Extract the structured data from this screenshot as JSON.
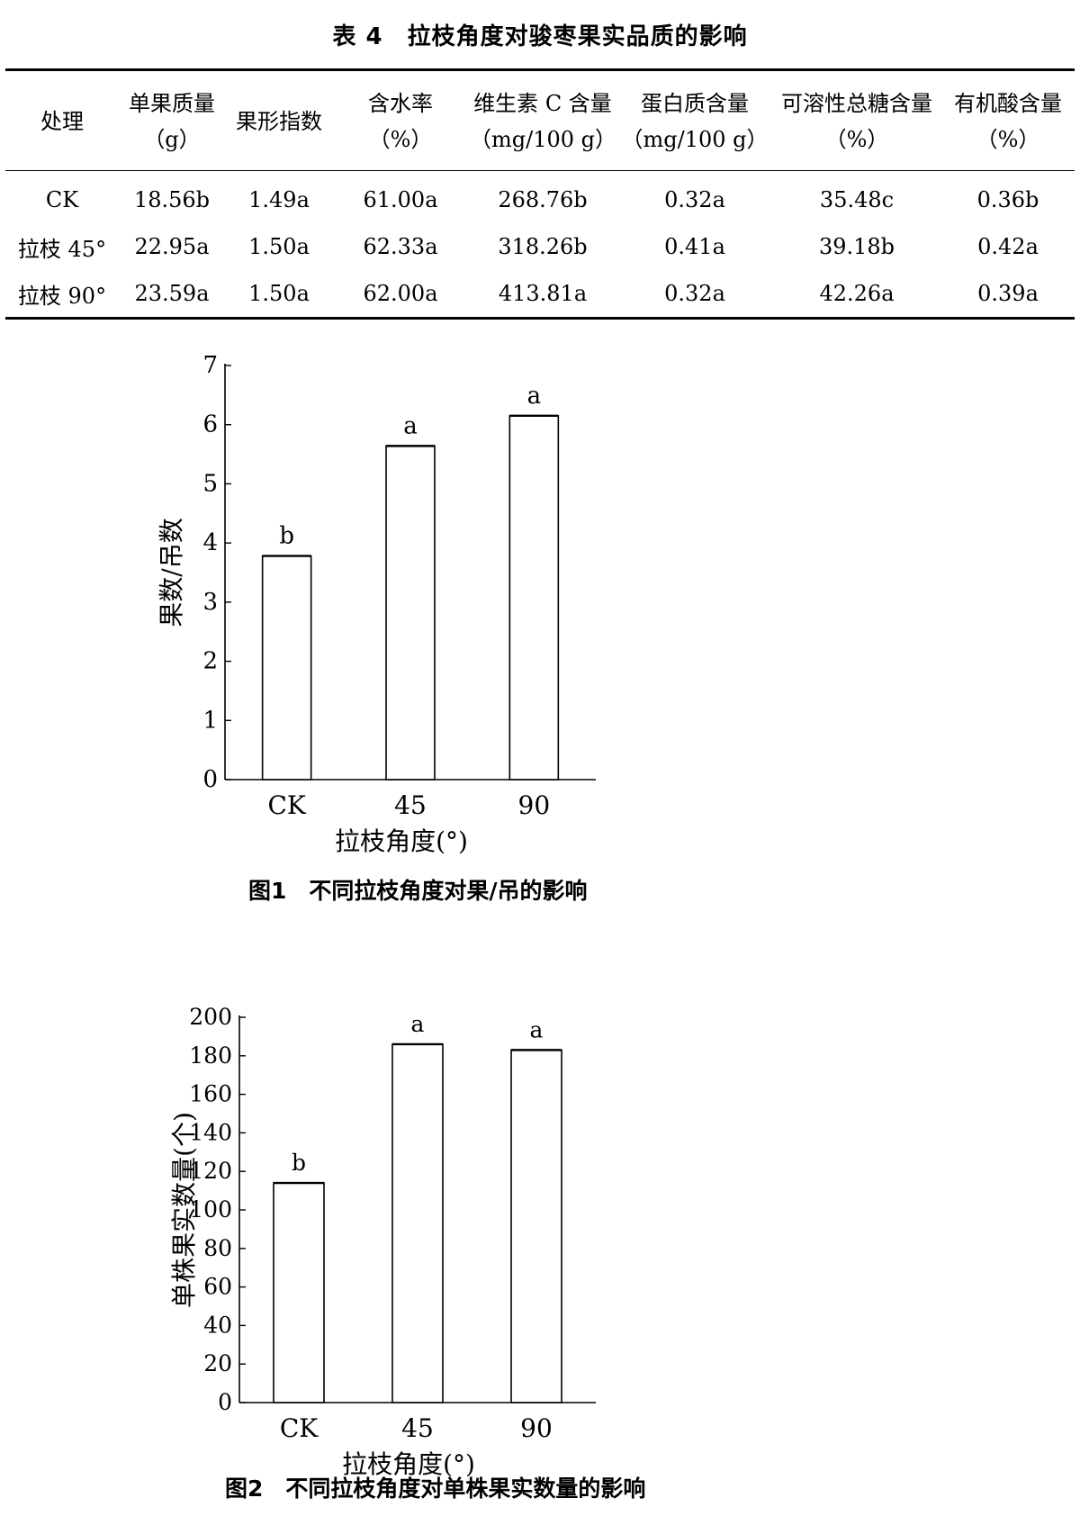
{
  "table": {
    "title": "表 4　拉枝角度对骏枣果实品质的影响",
    "headers": [
      {
        "label": "处理",
        "unit": ""
      },
      {
        "label": "单果质量",
        "unit": "（g）"
      },
      {
        "label": "果形指数",
        "unit": ""
      },
      {
        "label": "含水率",
        "unit": "（%）"
      },
      {
        "label": "维生素 C 含量",
        "unit": "（mg/100 g）"
      },
      {
        "label": "蛋白质含量",
        "unit": "（mg/100 g）"
      },
      {
        "label": "可溶性总糖含量",
        "unit": "（%）"
      },
      {
        "label": "有机酸含量",
        "unit": "（%）"
      }
    ],
    "rows": [
      [
        "CK",
        "18.56b",
        "1.49a",
        "61.00a",
        "268.76b",
        "0.32a",
        "35.48c",
        "0.36b"
      ],
      [
        "拉枝 45°",
        "22.95a",
        "1.50a",
        "62.33a",
        "318.26b",
        "0.41a",
        "39.18b",
        "0.42a"
      ],
      [
        "拉枝 90°",
        "23.59a",
        "1.50a",
        "62.00a",
        "413.81a",
        "0.32a",
        "42.26a",
        "0.39a"
      ]
    ]
  },
  "chart_data": [
    {
      "type": "bar",
      "caption": "图1　不同拉枝角度对果/吊的影响",
      "categories": [
        "CK",
        "45",
        "90"
      ],
      "values": [
        3.78,
        5.64,
        6.15
      ],
      "labels": [
        "b",
        "a",
        "a"
      ],
      "xlabel": "拉枝角度(°)",
      "ylabel": "果数/吊数",
      "ylim": [
        0,
        7
      ],
      "yticks": [
        "0",
        "1",
        "2",
        "3",
        "4",
        "5",
        "6",
        "7"
      ],
      "grid": false
    },
    {
      "type": "bar",
      "caption": "图2　不同拉枝角度对单株果实数量的影响",
      "categories": [
        "CK",
        "45",
        "90"
      ],
      "values": [
        114,
        186,
        183
      ],
      "labels": [
        "b",
        "a",
        "a"
      ],
      "xlabel": "拉枝角度(°)",
      "ylabel": "单株果实数量(个)",
      "ylim": [
        0,
        200
      ],
      "yticks": [
        "0",
        "20",
        "40",
        "60",
        "80",
        "100",
        "120",
        "140",
        "160",
        "180",
        "200"
      ],
      "grid": false
    }
  ]
}
